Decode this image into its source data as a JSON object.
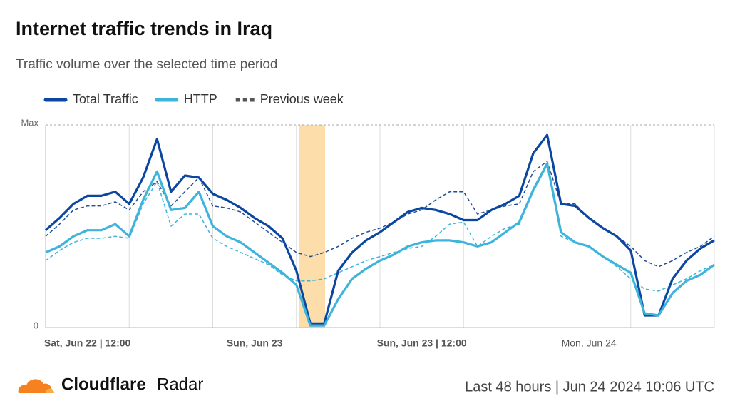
{
  "chart_data": {
    "type": "line",
    "title": "Internet traffic trends in Iraq",
    "subtitle": "Traffic volume over the selected time period",
    "categories": [
      null,
      null,
      null,
      "Sat, Jun 22 | 12:00",
      null,
      null,
      null,
      null,
      null,
      null,
      null,
      null,
      null,
      null,
      null,
      "Sun, Jun 23",
      null,
      null,
      null,
      null,
      null,
      null,
      null,
      null,
      null,
      null,
      null,
      "Sun, Jun 23 | 12:00",
      null,
      null,
      null,
      null,
      null,
      null,
      null,
      null,
      null,
      null,
      null,
      "Mon, Jun 24",
      null,
      null,
      null,
      null,
      null,
      null,
      null,
      null,
      null
    ],
    "series": [
      {
        "name": "Total Traffic",
        "color": "#0b47a1",
        "previous_color": "#1f4e9a",
        "values": [
          0.48,
          0.54,
          0.61,
          0.65,
          0.65,
          0.67,
          0.61,
          0.74,
          0.93,
          0.67,
          0.75,
          0.74,
          0.66,
          0.63,
          0.59,
          0.54,
          0.5,
          0.44,
          0.28,
          0.02,
          0.02,
          0.28,
          0.37,
          0.43,
          0.47,
          0.52,
          0.57,
          0.59,
          0.58,
          0.56,
          0.53,
          0.53,
          0.58,
          0.61,
          0.65,
          0.86,
          0.95,
          0.61,
          0.6,
          0.54,
          0.49,
          0.45,
          0.38,
          0.06,
          0.06,
          0.24,
          0.33,
          0.39,
          0.43
        ],
        "previous_values": [
          0.45,
          0.51,
          0.58,
          0.6,
          0.6,
          0.62,
          0.58,
          0.67,
          0.72,
          0.6,
          0.67,
          0.74,
          0.6,
          0.59,
          0.57,
          0.52,
          0.47,
          0.42,
          0.37,
          0.35,
          0.37,
          0.4,
          0.44,
          0.47,
          0.49,
          0.52,
          0.56,
          0.58,
          0.63,
          0.67,
          0.67,
          0.56,
          0.58,
          0.6,
          0.61,
          0.77,
          0.82,
          0.61,
          0.61,
          0.54,
          0.49,
          0.45,
          0.4,
          0.33,
          0.3,
          0.33,
          0.37,
          0.4,
          0.45
        ]
      },
      {
        "name": "HTTP",
        "color": "#3cb4dc",
        "previous_color": "#3cb4dc",
        "values": [
          0.37,
          0.4,
          0.45,
          0.48,
          0.48,
          0.51,
          0.45,
          0.63,
          0.77,
          0.58,
          0.59,
          0.67,
          0.5,
          0.45,
          0.42,
          0.37,
          0.32,
          0.27,
          0.21,
          0.01,
          0.01,
          0.14,
          0.24,
          0.29,
          0.33,
          0.36,
          0.4,
          0.42,
          0.43,
          0.43,
          0.42,
          0.4,
          0.42,
          0.47,
          0.52,
          0.68,
          0.81,
          0.47,
          0.42,
          0.4,
          0.35,
          0.31,
          0.27,
          0.07,
          0.06,
          0.17,
          0.23,
          0.26,
          0.31
        ],
        "previous_values": [
          0.33,
          0.38,
          0.42,
          0.44,
          0.44,
          0.45,
          0.44,
          0.61,
          0.72,
          0.5,
          0.56,
          0.56,
          0.44,
          0.4,
          0.37,
          0.34,
          0.31,
          0.26,
          0.23,
          0.23,
          0.24,
          0.27,
          0.3,
          0.33,
          0.35,
          0.37,
          0.39,
          0.4,
          0.45,
          0.51,
          0.52,
          0.4,
          0.45,
          0.49,
          0.51,
          0.67,
          0.8,
          0.45,
          0.42,
          0.4,
          0.35,
          0.3,
          0.24,
          0.19,
          0.18,
          0.21,
          0.24,
          0.28,
          0.31
        ]
      }
    ],
    "previous_label": "Previous week",
    "previous_legend_color": "#555555",
    "ylim": [
      0,
      1
    ],
    "yticks": [
      0,
      {
        "value": 1,
        "label": "Max"
      }
    ],
    "grid": true,
    "brand": {
      "name": "Cloudflare",
      "product": "Radar"
    },
    "footer": "Last 48 hours | Jun 24 2024 10:06 UTC"
  }
}
